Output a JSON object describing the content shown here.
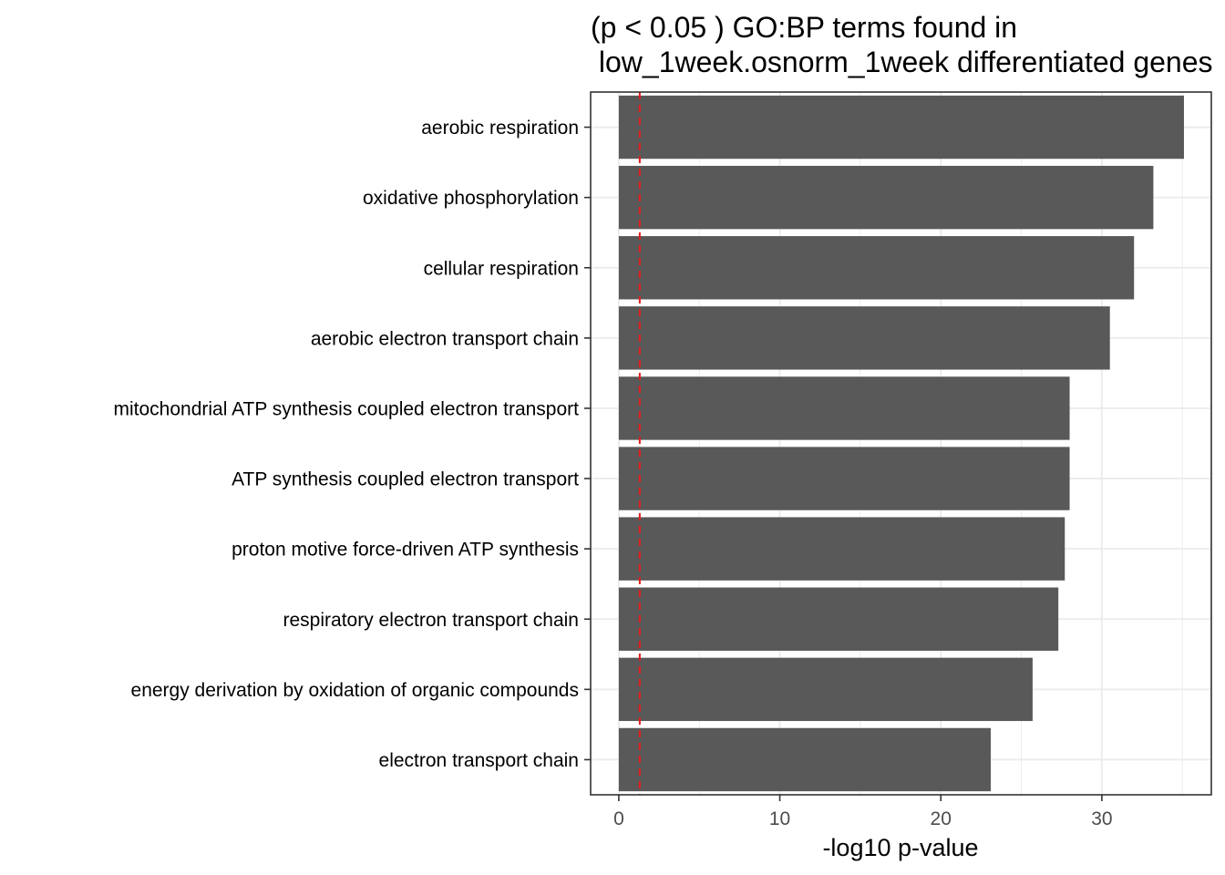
{
  "chart_data": {
    "type": "bar",
    "orientation": "horizontal",
    "title": "(p < 0.05 ) GO:BP terms found in",
    "subtitle": " low_1week.osnorm_1week differentiated genes",
    "xlabel": "-log10 p-value",
    "ylabel": "",
    "categories": [
      "aerobic respiration",
      "oxidative phosphorylation",
      "cellular respiration",
      "aerobic electron transport chain",
      "mitochondrial ATP synthesis coupled electron transport",
      "ATP synthesis coupled electron transport",
      "proton motive force-driven ATP synthesis",
      "respiratory electron transport chain",
      "energy derivation by oxidation of organic compounds",
      "electron transport chain"
    ],
    "values": [
      35.1,
      33.2,
      32.0,
      30.5,
      28.0,
      28.0,
      27.7,
      27.3,
      25.7,
      23.1
    ],
    "xlim": [
      -1.75,
      36.8
    ],
    "xticks": [
      0,
      10,
      20,
      30
    ],
    "threshold": 1.3,
    "grid": true,
    "legend": "none",
    "colors": {
      "bar": "#595959",
      "threshold": "#e41a1c",
      "grid": "#ebebeb",
      "panel_border": "#333333"
    }
  }
}
